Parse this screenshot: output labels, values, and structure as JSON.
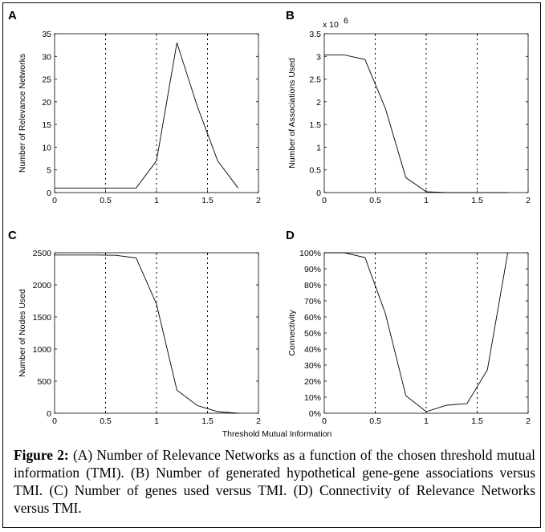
{
  "caption": {
    "label": "Figure 2:",
    "text": "(A) Number of Relevance Networks as a function of the chosen threshold mutual information (TMI). (B) Number of generated hypothetical gene-gene associations versus TMI. (C) Number of genes used versus TMI. (D) Connectivity of Relevance Networks versus TMI."
  },
  "shared_xlabel": "Threshold Mutual Information",
  "chart_data": [
    {
      "panel": "A",
      "type": "line",
      "title": "",
      "xlabel": "",
      "ylabel": "Number of Relevance Networks",
      "xlim": [
        0,
        2
      ],
      "ylim": [
        0,
        35
      ],
      "xticks": [
        0,
        0.5,
        1,
        1.5,
        2
      ],
      "xtick_labels": [
        "0",
        "0.5",
        "1",
        "1.5",
        "2"
      ],
      "yticks": [
        0,
        5,
        10,
        15,
        20,
        25,
        30,
        35
      ],
      "ytick_labels": [
        "0",
        "5",
        "10",
        "15",
        "20",
        "25",
        "30",
        "35"
      ],
      "vlines": [
        0.5,
        1,
        1.5
      ],
      "scale_label": "",
      "x": [
        0,
        0.2,
        0.4,
        0.6,
        0.8,
        1.0,
        1.2,
        1.4,
        1.6,
        1.8
      ],
      "y": [
        1,
        1,
        1,
        1,
        1,
        7,
        33,
        19,
        7,
        1
      ]
    },
    {
      "panel": "B",
      "type": "line",
      "title": "",
      "xlabel": "",
      "ylabel": "Number of Associations Used",
      "xlim": [
        0,
        2
      ],
      "ylim": [
        0,
        3.5
      ],
      "xticks": [
        0,
        0.5,
        1,
        1.5,
        2
      ],
      "xtick_labels": [
        "0",
        "0.5",
        "1",
        "1.5",
        "2"
      ],
      "yticks": [
        0,
        0.5,
        1,
        1.5,
        2,
        2.5,
        3,
        3.5
      ],
      "ytick_labels": [
        "0",
        "0.5",
        "1",
        "1.5",
        "2",
        "2.5",
        "3",
        "3.5"
      ],
      "vlines": [
        0.5,
        1,
        1.5
      ],
      "scale_label": "x 10",
      "scale_exponent": "6",
      "x": [
        0,
        0.2,
        0.4,
        0.6,
        0.8,
        1.0,
        1.2,
        1.4,
        1.6,
        1.8
      ],
      "y": [
        3.03,
        3.03,
        2.93,
        1.85,
        0.33,
        0.02,
        0.0,
        0.0,
        0.0,
        0.0
      ]
    },
    {
      "panel": "C",
      "type": "line",
      "title": "",
      "xlabel": "",
      "ylabel": "Number of Nodes Used",
      "xlim": [
        0,
        2
      ],
      "ylim": [
        0,
        2500
      ],
      "xticks": [
        0,
        0.5,
        1,
        1.5,
        2
      ],
      "xtick_labels": [
        "0",
        "0.5",
        "1",
        "1.5",
        "2"
      ],
      "yticks": [
        0,
        500,
        1000,
        1500,
        2000,
        2500
      ],
      "ytick_labels": [
        "0",
        "500",
        "1000",
        "1500",
        "2000",
        "2500"
      ],
      "vlines": [
        0.5,
        1,
        1.5
      ],
      "scale_label": "",
      "x": [
        0,
        0.2,
        0.4,
        0.6,
        0.8,
        1.0,
        1.2,
        1.4,
        1.6,
        1.8
      ],
      "y": [
        2465,
        2465,
        2465,
        2460,
        2420,
        1700,
        360,
        120,
        25,
        0
      ]
    },
    {
      "panel": "D",
      "type": "line",
      "title": "",
      "xlabel": "",
      "ylabel": "Connectivity",
      "xlim": [
        0,
        2
      ],
      "ylim": [
        0,
        100
      ],
      "xticks": [
        0,
        0.5,
        1,
        1.5,
        2
      ],
      "xtick_labels": [
        "0",
        "0.5",
        "1",
        "1.5",
        "2"
      ],
      "yticks": [
        0,
        10,
        20,
        30,
        40,
        50,
        60,
        70,
        80,
        90,
        100
      ],
      "ytick_labels": [
        "0%",
        "10%",
        "20%",
        "30%",
        "40%",
        "50%",
        "60%",
        "70%",
        "80%",
        "90%",
        "100%"
      ],
      "vlines": [
        0.5,
        1,
        1.5
      ],
      "scale_label": "",
      "x": [
        0,
        0.2,
        0.4,
        0.6,
        0.8,
        1.0,
        1.2,
        1.4,
        1.6,
        1.8
      ],
      "y": [
        100,
        100,
        97,
        62,
        11,
        1,
        5,
        6,
        27,
        100
      ]
    }
  ]
}
